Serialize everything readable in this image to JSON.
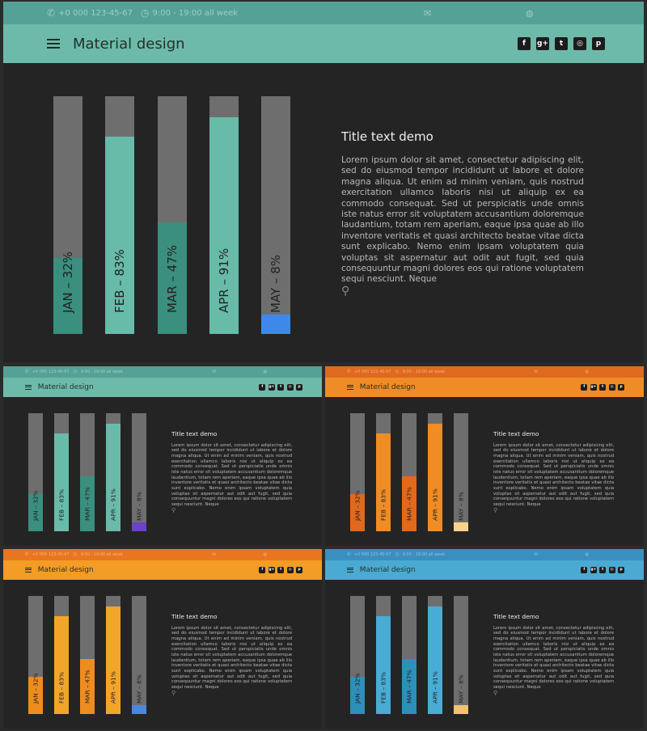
{
  "topbar": {
    "phone": "+0 000 123-45-67",
    "hours": "9:00 - 19:00 all week"
  },
  "header": {
    "title": "Material design"
  },
  "social_icons": [
    "facebook-icon",
    "google-plus-icon",
    "twitter-icon",
    "instagram-icon",
    "pinterest-icon"
  ],
  "social_glyphs": [
    "f",
    "g+",
    "t",
    "◎",
    "p"
  ],
  "content": {
    "title": "Title text demo",
    "body": "Lorem ipsum dolor sit amet, consectetur adipiscing elit, sed do eiusmod tempor incididunt ut labore et dolore magna aliqua. Ut enim ad minim veniam, quis nostrud exercitation ullamco laboris nisi ut aliquip ex ea commodo consequat. Sed ut perspiciatis unde omnis iste natus error sit voluptatem accusantium doloremque laudantium, totam rem aperiam, eaque ipsa quae ab illo inventore veritatis et quasi architecto beatae vitae dicta sunt explicabo. Nemo enim ipsam voluptatem quia voluptas sit aspernatur aut odit aut fugit, sed quia consequuntur magni dolores eos qui ratione voluptatem sequi nesciunt. Neque"
  },
  "chart_data": {
    "type": "bar",
    "categories": [
      "JAN",
      "FEB",
      "MAR",
      "APR",
      "MAY"
    ],
    "values": [
      32,
      83,
      47,
      91,
      8
    ],
    "labels": [
      "JAN – 32%",
      "FEB – 83%",
      "MAR – 47%",
      "APR – 91%",
      "MAY – 8%"
    ],
    "ylim": [
      0,
      100
    ],
    "orientation": "vertical",
    "value_label_orientation": "rotated"
  },
  "themes": [
    {
      "name": "teal",
      "topbar": "#54a295",
      "header": "#6dbaaa",
      "bars": [
        "#3a8f7e",
        "#68bba9",
        "#3a8f7e",
        "#68bba9",
        "#3f88ea"
      ],
      "labels": [
        "#222",
        "#222",
        "#222",
        "#222",
        "#222"
      ]
    },
    {
      "name": "teal-purple",
      "topbar": "#54a295",
      "header": "#6dbaaa",
      "bars": [
        "#3a8f7e",
        "#68bba9",
        "#3a8f7e",
        "#68bba9",
        "#6a42c6"
      ],
      "labels": [
        "#222",
        "#222",
        "#222",
        "#222",
        "#222"
      ]
    },
    {
      "name": "orange",
      "topbar": "#df6a1e",
      "header": "#f08c25",
      "bars": [
        "#e0691c",
        "#f08c25",
        "#e0691c",
        "#f08c25",
        "#f7d38c"
      ],
      "labels": [
        "#222",
        "#222",
        "#222",
        "#222",
        "#222"
      ]
    },
    {
      "name": "amber",
      "topbar": "#e8761f",
      "header": "#f39c26",
      "bars": [
        "#ee8c20",
        "#f3a52a",
        "#ee8c20",
        "#f3a52a",
        "#4b86e3"
      ],
      "labels": [
        "#222",
        "#222",
        "#222",
        "#222",
        "#222"
      ]
    },
    {
      "name": "blue",
      "topbar": "#3a8fc0",
      "header": "#4aaad2",
      "bars": [
        "#2e8fba",
        "#49acd4",
        "#2e8fba",
        "#49acd4",
        "#f5c16f"
      ],
      "labels": [
        "#222",
        "#222",
        "#222",
        "#222",
        "#222"
      ]
    }
  ]
}
